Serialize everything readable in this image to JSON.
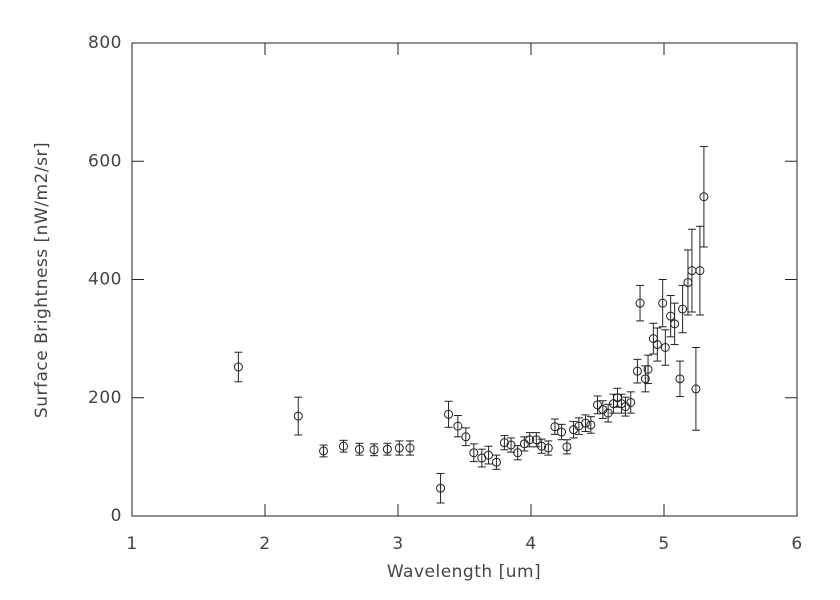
{
  "chart_data": {
    "type": "scatter",
    "x_label": "Wavelength [um]",
    "y_label": "Surface Brightness [nW/m2/sr]",
    "xlim": [
      1,
      6
    ],
    "xticks": [
      1,
      2,
      3,
      4,
      5,
      6
    ],
    "ylim": [
      0,
      800
    ],
    "yticks": [
      0,
      200,
      400,
      600,
      800
    ],
    "color": "#222222",
    "x": [
      1.8,
      2.25,
      2.44,
      2.59,
      2.71,
      2.82,
      2.92,
      3.01,
      3.09,
      3.32,
      3.38,
      3.45,
      3.51,
      3.57,
      3.63,
      3.68,
      3.74,
      3.8,
      3.85,
      3.9,
      3.95,
      3.99,
      4.04,
      4.08,
      4.13,
      4.18,
      4.23,
      4.27,
      4.32,
      4.36,
      4.41,
      4.45,
      4.5,
      4.54,
      4.58,
      4.62,
      4.65,
      4.68,
      4.71,
      4.75,
      4.8,
      4.82,
      4.86,
      4.88,
      4.92,
      4.95,
      4.99,
      5.01,
      5.05,
      5.08,
      5.12,
      5.14,
      5.18,
      5.21,
      5.24,
      5.27,
      5.3
    ],
    "values": [
      252,
      169,
      110,
      118,
      113,
      112,
      113,
      115,
      115,
      47,
      172,
      152,
      134,
      107,
      98,
      103,
      91,
      124,
      120,
      107,
      122,
      129,
      129,
      118,
      115,
      151,
      142,
      117,
      146,
      152,
      157,
      154,
      188,
      180,
      174,
      190,
      200,
      190,
      185,
      192,
      245,
      360,
      232,
      248,
      300,
      290,
      360,
      285,
      338,
      325,
      232,
      350,
      395,
      415,
      215,
      415,
      540
    ],
    "errors": [
      25,
      32,
      10,
      10,
      10,
      10,
      10,
      12,
      12,
      25,
      22,
      18,
      15,
      15,
      15,
      15,
      12,
      12,
      12,
      12,
      12,
      12,
      12,
      12,
      12,
      13,
      13,
      12,
      14,
      14,
      14,
      14,
      15,
      15,
      15,
      16,
      16,
      16,
      16,
      18,
      20,
      30,
      22,
      24,
      26,
      28,
      40,
      30,
      35,
      35,
      30,
      40,
      55,
      70,
      70,
      75,
      85
    ],
    "grid": false
  }
}
